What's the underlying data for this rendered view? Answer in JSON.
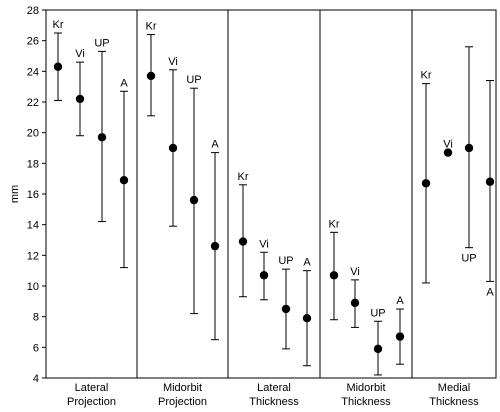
{
  "chart_data": {
    "type": "scatter",
    "ylabel": "mm",
    "ylim": [
      4,
      28
    ],
    "yticks": [
      4,
      6,
      8,
      10,
      12,
      14,
      16,
      18,
      20,
      22,
      24,
      26,
      28
    ],
    "grid": false,
    "groups": [
      {
        "label_lines": [
          "Lateral",
          "Projection"
        ],
        "points": [
          {
            "label": "Kr",
            "mean": 24.3,
            "low": 22.1,
            "high": 26.5
          },
          {
            "label": "Vi",
            "mean": 22.2,
            "low": 19.8,
            "high": 24.6
          },
          {
            "label": "UP",
            "mean": 19.7,
            "low": 14.2,
            "high": 25.3
          },
          {
            "label": "A",
            "mean": 16.9,
            "low": 11.2,
            "high": 22.7
          }
        ]
      },
      {
        "label_lines": [
          "Midorbit",
          "Projection"
        ],
        "points": [
          {
            "label": "Kr",
            "mean": 23.7,
            "low": 21.1,
            "high": 26.4
          },
          {
            "label": "Vi",
            "mean": 19.0,
            "low": 13.9,
            "high": 24.1
          },
          {
            "label": "UP",
            "mean": 15.6,
            "low": 8.2,
            "high": 22.9
          },
          {
            "label": "A",
            "mean": 12.6,
            "low": 6.5,
            "high": 18.7
          }
        ]
      },
      {
        "label_lines": [
          "Lateral",
          "Thickness"
        ],
        "points": [
          {
            "label": "Kr",
            "mean": 12.9,
            "low": 9.3,
            "high": 16.6
          },
          {
            "label": "Vi",
            "mean": 10.7,
            "low": 9.1,
            "high": 12.2
          },
          {
            "label": "UP",
            "mean": 8.5,
            "low": 5.9,
            "high": 11.1
          },
          {
            "label": "A",
            "mean": 7.9,
            "low": 4.8,
            "high": 11.0
          }
        ]
      },
      {
        "label_lines": [
          "Midorbit",
          "Thickness"
        ],
        "points": [
          {
            "label": "Kr",
            "mean": 10.7,
            "low": 7.8,
            "high": 13.5
          },
          {
            "label": "Vi",
            "mean": 8.9,
            "low": 7.3,
            "high": 10.4
          },
          {
            "label": "UP",
            "mean": 5.9,
            "low": 4.2,
            "high": 7.7
          },
          {
            "label": "A",
            "mean": 6.7,
            "low": 4.9,
            "high": 8.5
          }
        ]
      },
      {
        "label_lines": [
          "Medial",
          "Thickness"
        ],
        "points": [
          {
            "label": "Kr",
            "mean": 16.7,
            "low": 10.2,
            "high": 23.2
          },
          {
            "label": "Vi",
            "mean": 18.7,
            "low": null,
            "high": null
          },
          {
            "label": "UP",
            "mean": 19.0,
            "low": 12.5,
            "high": 25.6
          },
          {
            "label": "A",
            "mean": 16.8,
            "low": 10.3,
            "high": 23.4
          }
        ]
      }
    ]
  }
}
